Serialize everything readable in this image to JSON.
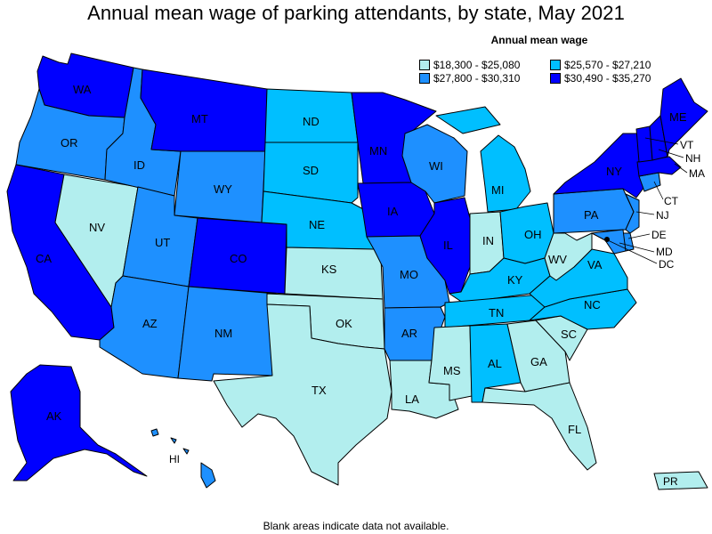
{
  "title": "Annual mean wage of parking attendants, by state, May 2021",
  "legend": {
    "title": "Annual mean wage",
    "items": [
      {
        "label": "$18,300 - $25,080",
        "color": "#b2eeee"
      },
      {
        "label": "$25,570 - $27,210",
        "color": "#00bfff"
      },
      {
        "label": "$27,800 - $30,310",
        "color": "#1e90ff"
      },
      {
        "label": "$30,490 - $35,270",
        "color": "#0000ff"
      }
    ]
  },
  "footnote": "Blank areas indicate data not available.",
  "states": {
    "WA": "WA",
    "OR": "OR",
    "CA": "CA",
    "NV": "NV",
    "ID": "ID",
    "MT": "MT",
    "WY": "WY",
    "UT": "UT",
    "AZ": "AZ",
    "CO": "CO",
    "NM": "NM",
    "ND": "ND",
    "SD": "SD",
    "NE": "NE",
    "KS": "KS",
    "OK": "OK",
    "TX": "TX",
    "MN": "MN",
    "IA": "IA",
    "MO": "MO",
    "AR": "AR",
    "LA": "LA",
    "WI": "WI",
    "IL": "IL",
    "MI": "MI",
    "IN": "IN",
    "OH": "OH",
    "KY": "KY",
    "TN": "TN",
    "MS": "MS",
    "AL": "AL",
    "GA": "GA",
    "FL": "FL",
    "SC": "SC",
    "NC": "NC",
    "VA": "VA",
    "WV": "WV",
    "PA": "PA",
    "NY": "NY",
    "ME": "ME",
    "VT": "VT",
    "NH": "NH",
    "MA": "MA",
    "CT": "CT",
    "NJ": "NJ",
    "DE": "DE",
    "MD": "MD",
    "DC": "DC",
    "AK": "AK",
    "HI": "HI",
    "PR": "PR"
  }
}
